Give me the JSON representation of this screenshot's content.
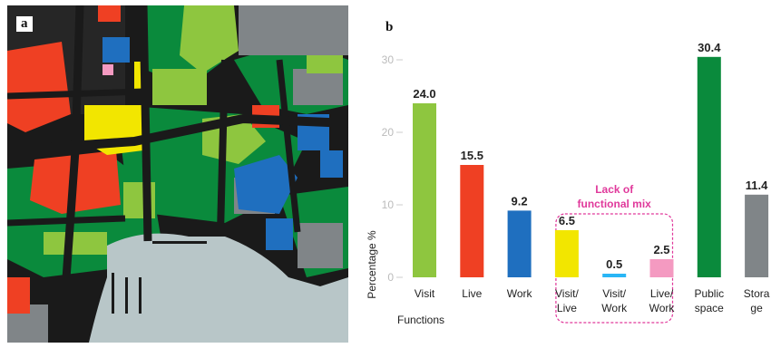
{
  "panels": {
    "a_label": "a",
    "b_label": "b"
  },
  "map_legend_colors": {
    "visit": "#8ec63f",
    "live": "#ef4023",
    "work": "#1f6fbf",
    "visit_live": "#f2e600",
    "live_work": "#f49ac1",
    "public_space": "#0a8a3c",
    "storage": "#808588",
    "water": "#b8c6c8",
    "streets": "#1a1a1a"
  },
  "chart_data": {
    "type": "bar",
    "title": "",
    "xlabel": "Functions",
    "ylabel": "Percentage %",
    "ylim": [
      0,
      32
    ],
    "yticks": [
      0,
      10,
      20,
      30
    ],
    "grid": false,
    "categories": [
      {
        "line1": "Visit",
        "line2": ""
      },
      {
        "line1": "Live",
        "line2": ""
      },
      {
        "line1": "Work",
        "line2": ""
      },
      {
        "line1": "Visit/",
        "line2": "Live"
      },
      {
        "line1": "Visit/",
        "line2": "Work"
      },
      {
        "line1": "Live/",
        "line2": "Work"
      },
      {
        "line1": "Public",
        "line2": "space"
      },
      {
        "line1": "Stora",
        "line2": "ge"
      }
    ],
    "values": [
      24.0,
      15.5,
      9.2,
      6.5,
      0.5,
      2.5,
      30.4,
      11.4
    ],
    "value_labels": [
      "24.0",
      "15.5",
      "9.2",
      "6.5",
      "0.5",
      "2.5",
      "30.4",
      "11.4"
    ],
    "colors": [
      "#8ec63f",
      "#ef4023",
      "#1f6fbf",
      "#f2e600",
      "#29b6f6",
      "#f49ac1",
      "#0a8a3c",
      "#808588"
    ],
    "annotation": {
      "line1": "Lack of",
      "line2": "functional mix",
      "color": "#e0399b",
      "groups": [
        3,
        4,
        5
      ]
    }
  }
}
